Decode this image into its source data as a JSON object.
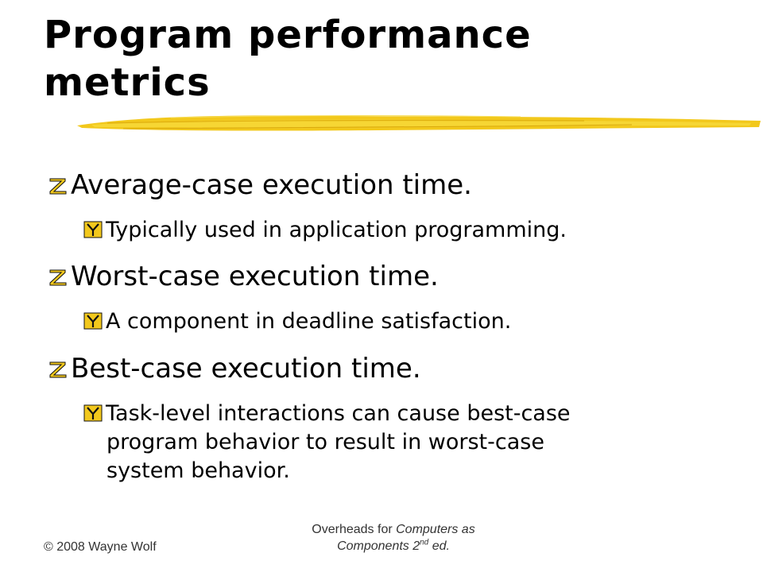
{
  "slide": {
    "title_lines": [
      "Program performance",
      "metrics"
    ],
    "accent_color": "#f2c81c",
    "bullets": [
      {
        "level": 1,
        "marker_icon": "z-bullet-icon",
        "text": "Average-case execution time."
      },
      {
        "level": 2,
        "marker_icon": "y-bullet-icon",
        "text": "Typically used in application programming."
      },
      {
        "level": 1,
        "marker_icon": "z-bullet-icon",
        "text": "Worst-case execution time."
      },
      {
        "level": 2,
        "marker_icon": "y-bullet-icon",
        "text": "A component in deadline satisfaction."
      },
      {
        "level": 1,
        "marker_icon": "z-bullet-icon",
        "text": "Best-case execution time."
      },
      {
        "level": 2,
        "marker_icon": "y-bullet-icon",
        "lines": [
          "Task-level interactions can cause best-case",
          "program behavior to result in worst-case",
          "system behavior."
        ]
      }
    ]
  },
  "footer": {
    "copyright": "© 2008 Wayne Wolf",
    "overheads_prefix": "Overheads for ",
    "book_title_1": "Computers as",
    "book_title_2": "Components 2",
    "edition_sup": "nd",
    "edition_suffix": " ed."
  }
}
